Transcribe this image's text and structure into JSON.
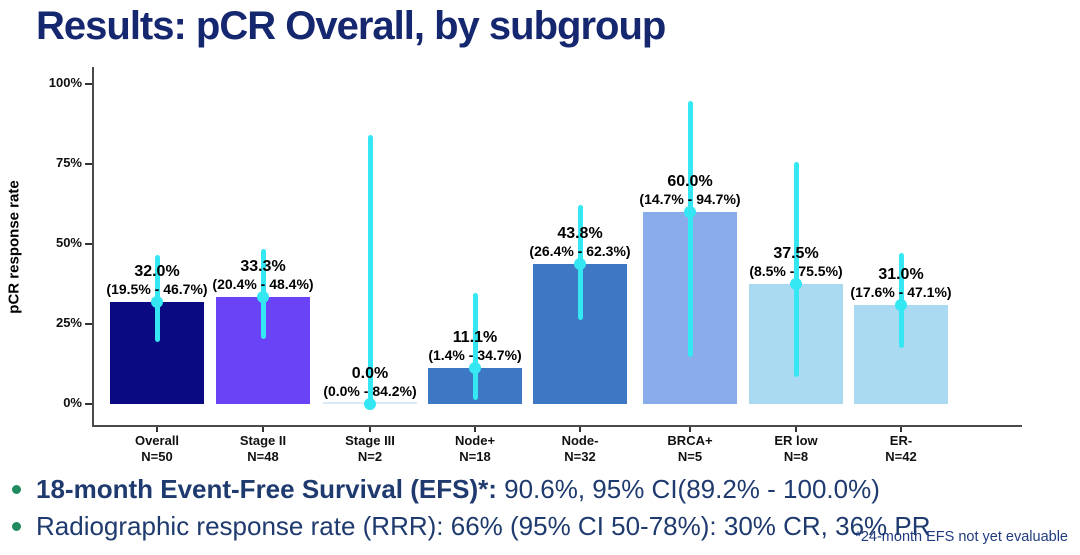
{
  "header": {
    "title": "Results: pCR Overall, by subgroup"
  },
  "chart_data": {
    "type": "bar",
    "title": "Results: pCR Overall, by subgroup",
    "xlabel": "",
    "ylabel": "pCR response rate",
    "ylim": [
      0,
      100
    ],
    "yticks": [
      0,
      25,
      50,
      75,
      100
    ],
    "ytick_labels": [
      "0%",
      "25%",
      "50%",
      "75%",
      "100%"
    ],
    "grid": false,
    "legend": "none",
    "categories": [
      "Overall",
      "Stage II",
      "Stage III",
      "Node+",
      "Node-",
      "BRCA+",
      "ER low",
      "ER-"
    ],
    "n_labels": [
      "N=50",
      "N=48",
      "N=2",
      "N=18",
      "N=32",
      "N=5",
      "N=8",
      "N=42"
    ],
    "values": [
      32.0,
      33.3,
      0.0,
      11.1,
      43.8,
      60.0,
      37.5,
      31.0
    ],
    "ci_low": [
      19.5,
      20.4,
      0.0,
      1.4,
      26.4,
      14.7,
      8.5,
      17.6
    ],
    "ci_high": [
      46.7,
      48.4,
      84.2,
      34.7,
      62.3,
      94.7,
      75.5,
      47.1
    ],
    "value_labels": [
      "32.0%",
      "33.3%",
      "0.0%",
      "11.1%",
      "43.8%",
      "60.0%",
      "37.5%",
      "31.0%"
    ],
    "ci_labels": [
      "(19.5% - 46.7%)",
      "(20.4% - 48.4%)",
      "(0.0% - 84.2%)",
      "(1.4% - 34.7%)",
      "(26.4% - 62.3%)",
      "(14.7% - 94.7%)",
      "(8.5% - 75.5%)",
      "(17.6% - 47.1%)"
    ],
    "bar_colors": [
      "#0A0A82",
      "#6B43F7",
      "none",
      "#3E78C4",
      "#3E78C4",
      "#8BACEA",
      "#A9DAF2",
      "#A9DAF2"
    ],
    "errorbar_color": "#35E7F2",
    "point_color": "#35E7F2"
  },
  "bullets": [
    {
      "lead": "18-month Event-Free Survival (EFS)*:",
      "rest": " 90.6%, 95% CI(89.2% - 100.0%)"
    },
    {
      "lead": "",
      "rest": "Radiographic response rate (RRR): 66% (95% CI 50-78%): 30% CR, 36% PR"
    }
  ],
  "footnote": "*24-month EFS not yet evaluable",
  "colors": {
    "title_navy": "#15276E",
    "body_navy": "#1E3A6E",
    "bullet_green": "#1F8B5F",
    "axis_gray": "#4A4A4A",
    "label_black": "#000000"
  }
}
